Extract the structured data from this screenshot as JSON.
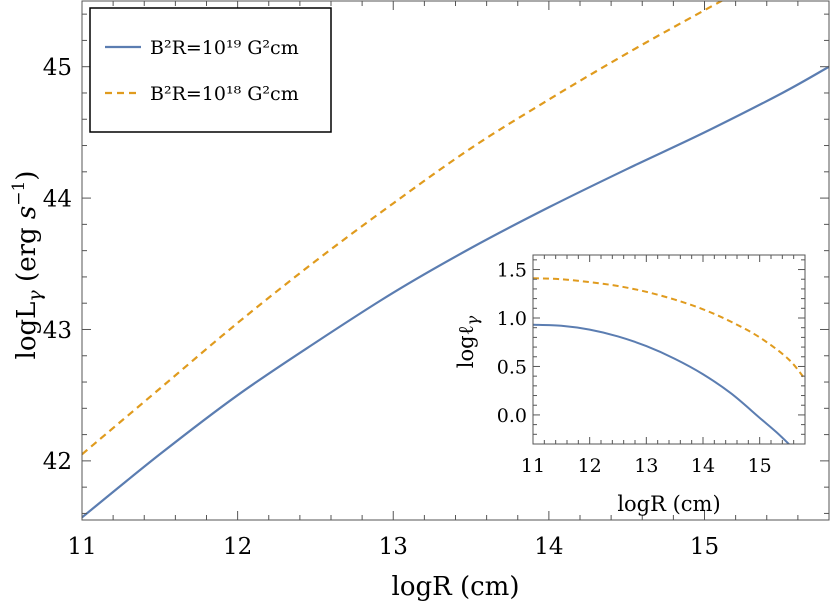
{
  "chart_data": [
    {
      "type": "line",
      "xlabel": "logR (cm)",
      "ylabel": "logL_γ (erg s^-1)",
      "xlim": [
        11,
        15.8
      ],
      "ylim": [
        41.55,
        45.5
      ],
      "xticks": [
        11,
        12,
        13,
        14,
        15
      ],
      "yticks": [
        42,
        43,
        44,
        45
      ],
      "grid": false,
      "legend_position": "top-left",
      "series": [
        {
          "name": "B²R=10¹⁹ G²cm",
          "style": "solid",
          "color": "#5b7db1",
          "x": [
            11,
            11.5,
            12,
            12.5,
            13,
            13.5,
            14,
            14.5,
            15,
            15.5,
            15.8
          ],
          "y": [
            41.57,
            42.05,
            42.5,
            42.9,
            43.28,
            43.62,
            43.93,
            44.22,
            44.5,
            44.8,
            45.0
          ]
        },
        {
          "name": "B²R=10¹⁸ G²cm",
          "style": "dashed",
          "color": "#e09b1e",
          "x": [
            11,
            11.5,
            12,
            12.5,
            13,
            13.5,
            14,
            14.5,
            15,
            15.5
          ],
          "y": [
            42.05,
            42.55,
            43.05,
            43.52,
            43.96,
            44.38,
            44.75,
            45.1,
            45.43,
            45.75
          ]
        }
      ]
    },
    {
      "type": "line",
      "xlabel": "logR (cm)",
      "ylabel": "logℓ_γ",
      "xlim": [
        11,
        15.8
      ],
      "ylim": [
        -0.3,
        1.65
      ],
      "xticks": [
        11,
        12,
        13,
        14,
        15
      ],
      "yticks": [
        0.0,
        0.5,
        1.0,
        1.5
      ],
      "yticklabels": [
        "0.0",
        "0.5",
        "1.0",
        "1.5"
      ],
      "grid": false,
      "series": [
        {
          "style": "solid",
          "color": "#5b7db1",
          "x": [
            11,
            11.5,
            12,
            12.5,
            13,
            13.5,
            14,
            14.5,
            15,
            15.3,
            15.55
          ],
          "y": [
            0.93,
            0.92,
            0.88,
            0.81,
            0.71,
            0.58,
            0.42,
            0.22,
            -0.03,
            -0.18,
            -0.32
          ]
        },
        {
          "style": "dashed",
          "color": "#e09b1e",
          "x": [
            11,
            11.5,
            12,
            12.5,
            13,
            13.5,
            14,
            14.5,
            15,
            15.5,
            15.8
          ],
          "y": [
            1.41,
            1.4,
            1.37,
            1.33,
            1.27,
            1.19,
            1.09,
            0.96,
            0.8,
            0.58,
            0.37
          ]
        }
      ]
    }
  ]
}
